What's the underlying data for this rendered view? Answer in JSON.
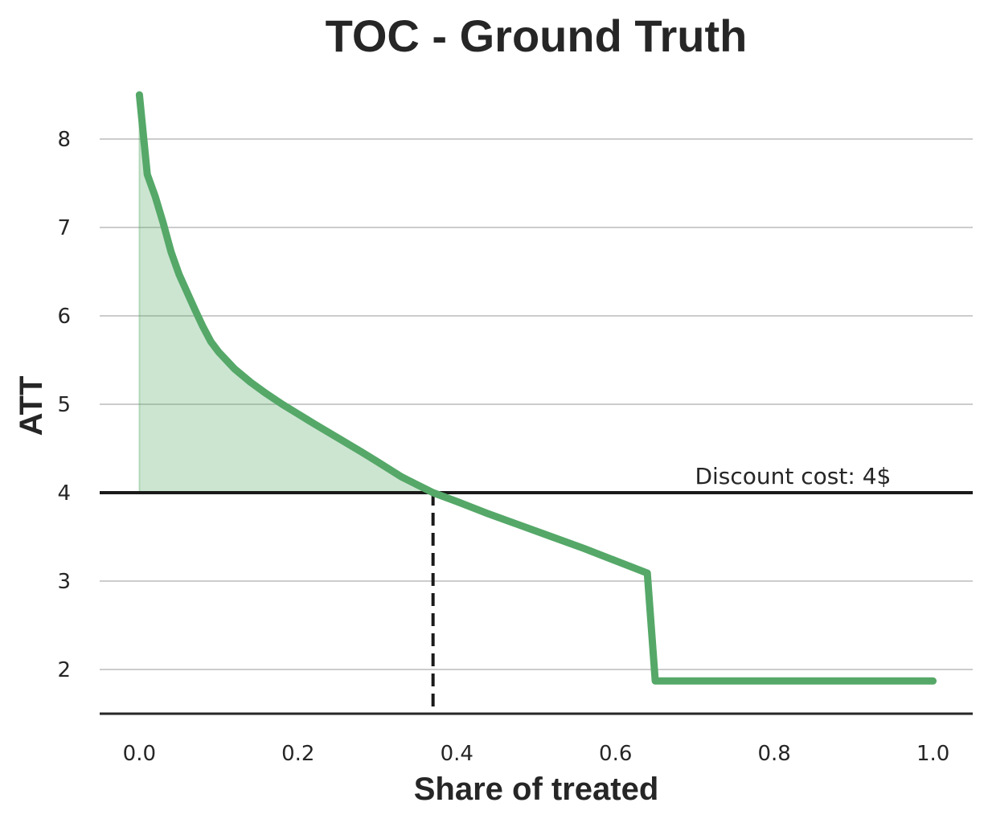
{
  "chart_data": {
    "type": "line",
    "title": "TOC - Ground Truth",
    "xlabel": "Share of treated",
    "ylabel": "ATT",
    "xlim": [
      -0.05,
      1.05
    ],
    "ylim": [
      1.5,
      8.5
    ],
    "x_ticks": [
      "0.0",
      "0.2",
      "0.4",
      "0.6",
      "0.8",
      "1.0"
    ],
    "y_ticks": [
      "2",
      "3",
      "4",
      "5",
      "6",
      "7",
      "8"
    ],
    "grid": "horizontal",
    "series": [
      {
        "color": "#55a868",
        "x": [
          0.0,
          0.01,
          0.02,
          0.03,
          0.04,
          0.05,
          0.06,
          0.07,
          0.08,
          0.09,
          0.1,
          0.12,
          0.14,
          0.16,
          0.18,
          0.2,
          0.22,
          0.25,
          0.28,
          0.3,
          0.33,
          0.35,
          0.37,
          0.4,
          0.44,
          0.48,
          0.52,
          0.56,
          0.6,
          0.64,
          0.65,
          0.7,
          0.8,
          0.9,
          1.0
        ],
        "y": [
          8.5,
          7.6,
          7.35,
          7.05,
          6.72,
          6.47,
          6.27,
          6.07,
          5.88,
          5.71,
          5.59,
          5.4,
          5.25,
          5.12,
          5.0,
          4.89,
          4.78,
          4.62,
          4.46,
          4.35,
          4.18,
          4.09,
          4.0,
          3.9,
          3.76,
          3.63,
          3.5,
          3.37,
          3.23,
          3.09,
          1.87,
          1.87,
          1.87,
          1.87,
          1.87
        ]
      }
    ],
    "threshold": {
      "y": 4,
      "label": "Discount cost: 4$",
      "label_x": 0.7
    },
    "cutoff_x": 0.37,
    "fill_color": "#55a868"
  }
}
